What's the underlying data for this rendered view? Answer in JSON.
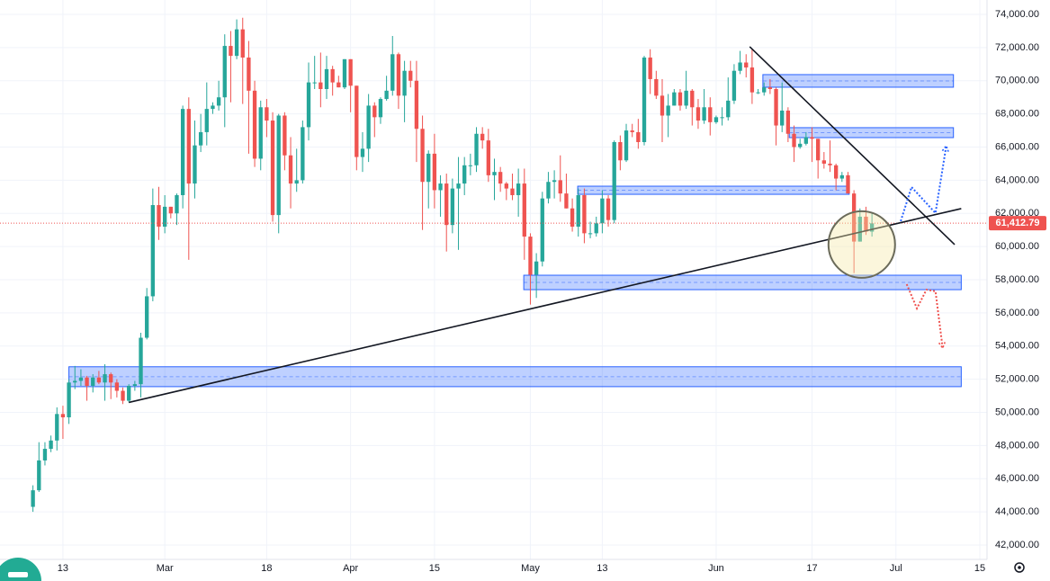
{
  "chart_data": {
    "type": "candlestick",
    "up_color": "#26a69a",
    "down_color": "#ef5350",
    "xlim": [
      33.5,
      198.2
    ],
    "ylim": [
      41130,
      74870
    ],
    "grid": true,
    "xticks": [
      {
        "value": 44,
        "label": "13"
      },
      {
        "value": 61,
        "label": "Mar"
      },
      {
        "value": 78,
        "label": "18"
      },
      {
        "value": 92,
        "label": "Apr"
      },
      {
        "value": 106,
        "label": "15"
      },
      {
        "value": 122,
        "label": "May"
      },
      {
        "value": 134,
        "label": "13"
      },
      {
        "value": 153,
        "label": "Jun"
      },
      {
        "value": 169,
        "label": "17"
      },
      {
        "value": 183,
        "label": "Jul"
      },
      {
        "value": 197,
        "label": "15"
      }
    ],
    "yticks": [
      {
        "value": 42000,
        "label": "42,000.00"
      },
      {
        "value": 44000,
        "label": "44,000.00"
      },
      {
        "value": 46000,
        "label": "46,000.00"
      },
      {
        "value": 48000,
        "label": "48,000.00"
      },
      {
        "value": 50000,
        "label": "50,000.00"
      },
      {
        "value": 52000,
        "label": "52,000.00"
      },
      {
        "value": 54000,
        "label": "54,000.00"
      },
      {
        "value": 56000,
        "label": "56,000.00"
      },
      {
        "value": 58000,
        "label": "58,000.00"
      },
      {
        "value": 60000,
        "label": "60,000.00"
      },
      {
        "value": 62000,
        "label": "62,000.00"
      },
      {
        "value": 64000,
        "label": "64,000.00"
      },
      {
        "value": 66000,
        "label": "66,000.00"
      },
      {
        "value": 68000,
        "label": "68,000.00"
      },
      {
        "value": 70000,
        "label": "70,000.00"
      },
      {
        "value": 72000,
        "label": "72,000.00"
      },
      {
        "value": 74000,
        "label": "74,000.00"
      }
    ],
    "x": [
      39,
      40,
      41,
      42,
      43,
      44,
      45,
      46,
      47,
      48,
      49,
      50,
      51,
      52,
      53,
      54,
      55,
      56,
      57,
      58,
      59,
      60,
      61,
      62,
      63,
      64,
      65,
      66,
      67,
      68,
      69,
      70,
      71,
      72,
      73,
      74,
      75,
      76,
      77,
      78,
      79,
      80,
      81,
      82,
      83,
      84,
      85,
      86,
      87,
      88,
      89,
      90,
      91,
      92,
      93,
      94,
      95,
      96,
      97,
      98,
      99,
      100,
      101,
      102,
      103,
      104,
      105,
      106,
      107,
      108,
      109,
      110,
      111,
      112,
      113,
      114,
      115,
      116,
      117,
      118,
      119,
      120,
      121,
      122,
      123,
      124,
      125,
      126,
      127,
      128,
      129,
      130,
      131,
      132,
      133,
      134,
      135,
      136,
      137,
      138,
      139,
      140,
      141,
      142,
      143,
      144,
      145,
      146,
      147,
      148,
      149,
      150,
      151,
      152,
      153,
      154,
      155,
      156,
      157,
      158,
      159,
      160,
      161,
      162,
      163,
      164,
      165,
      166,
      167,
      168,
      169,
      170,
      171,
      172,
      173,
      174,
      175,
      176,
      177,
      178,
      179
    ],
    "open": [
      44300,
      45300,
      47100,
      47800,
      48300,
      49900,
      49700,
      51800,
      51900,
      52100,
      51600,
      52100,
      51800,
      52300,
      51800,
      51300,
      50700,
      51600,
      51700,
      54500,
      57000,
      62500,
      61200,
      62400,
      62000,
      63100,
      68300,
      63800,
      66100,
      66900,
      68300,
      68500,
      69000,
      72100,
      71500,
      73100,
      71400,
      69400,
      65300,
      68400,
      67600,
      61900,
      67900,
      65500,
      63800,
      64000,
      67200,
      69900,
      69900,
      69500,
      70700,
      69900,
      69600,
      71300,
      69700,
      65400,
      65900,
      68500,
      67800,
      68900,
      69400,
      71600,
      69100,
      70600,
      70000,
      67100,
      63900,
      65600,
      63400,
      63800,
      61300,
      63500,
      63800,
      64900,
      64900,
      66800,
      66400,
      64300,
      64500,
      63800,
      63500,
      63100,
      63800,
      60600,
      58300,
      59100,
      62900,
      63900,
      64000,
      63200,
      62300,
      61200,
      63100,
      60800,
      60800,
      61400,
      62900,
      61600,
      66300,
      65200,
      67000,
      66900,
      66300,
      71400,
      70100,
      69100,
      67900,
      68500,
      69300,
      68500,
      69400,
      68400,
      67600,
      68400,
      67500,
      67800,
      67800,
      68800,
      70600,
      71100,
      70800,
      69300,
      69300,
      69600,
      69500,
      67300,
      68200,
      66800,
      66000,
      66200,
      66600,
      66500,
      65200,
      65000,
      64900,
      64100,
      64300,
      63200,
      60300,
      61800,
      60900
    ],
    "high": [
      45600,
      48200,
      48200,
      48600,
      50300,
      50400,
      52000,
      52800,
      52600,
      52200,
      52300,
      52500,
      52900,
      52400,
      52000,
      51500,
      51700,
      51900,
      54800,
      57500,
      63500,
      63600,
      63100,
      62400,
      63200,
      68500,
      69000,
      67600,
      68000,
      69900,
      68700,
      70000,
      72800,
      73000,
      73700,
      73800,
      72400,
      70000,
      68800,
      68900,
      68100,
      68000,
      68100,
      66600,
      65900,
      67600,
      71100,
      71500,
      71700,
      71500,
      70900,
      70300,
      71300,
      71300,
      69700,
      66900,
      69200,
      68700,
      69000,
      70300,
      72700,
      71700,
      71200,
      71200,
      71200,
      67900,
      65800,
      66800,
      64300,
      64400,
      64100,
      65400,
      65400,
      65600,
      67200,
      67200,
      67100,
      65300,
      64800,
      63900,
      64400,
      64700,
      64700,
      60800,
      59600,
      63300,
      64500,
      64600,
      65500,
      64400,
      62900,
      63500,
      63500,
      61500,
      61800,
      63400,
      63100,
      66400,
      66700,
      67400,
      67400,
      67700,
      71500,
      71900,
      70600,
      70100,
      69200,
      69500,
      69500,
      70600,
      69500,
      68900,
      69500,
      69000,
      67900,
      68400,
      70200,
      71000,
      71800,
      71600,
      71900,
      69500,
      69900,
      70100,
      69600,
      69900,
      68400,
      67300,
      66500,
      66900,
      67200,
      66500,
      65700,
      66400,
      65000,
      64500,
      64500,
      63400,
      62300,
      62400,
      62000
    ],
    "low": [
      44000,
      45200,
      46800,
      47600,
      47700,
      48400,
      49300,
      51400,
      51600,
      50700,
      51200,
      51700,
      50700,
      50800,
      50900,
      50500,
      50600,
      51300,
      50900,
      54400,
      56700,
      60400,
      60800,
      61700,
      61300,
      62300,
      59200,
      62900,
      65700,
      66100,
      68000,
      68200,
      67200,
      68700,
      71300,
      68600,
      65600,
      64800,
      64600,
      66600,
      61500,
      60800,
      64600,
      62300,
      63300,
      63800,
      66400,
      69500,
      68400,
      68900,
      69100,
      69600,
      69500,
      68100,
      64600,
      64500,
      65100,
      66600,
      67400,
      68800,
      69100,
      68300,
      67500,
      69600,
      65100,
      61000,
      62300,
      62300,
      61800,
      59700,
      60800,
      59800,
      63100,
      64300,
      64500,
      65900,
      63900,
      62800,
      63300,
      62800,
      62800,
      61800,
      59200,
      56500,
      56900,
      58800,
      62600,
      62900,
      62700,
      62300,
      60900,
      60600,
      60200,
      60500,
      60600,
      60800,
      61200,
      61400,
      64600,
      65100,
      66600,
      65900,
      66100,
      69200,
      68900,
      66300,
      66600,
      68500,
      68200,
      68300,
      67300,
      67100,
      67400,
      66700,
      67400,
      67300,
      67600,
      68600,
      70400,
      70200,
      68600,
      69200,
      69100,
      69200,
      66100,
      66900,
      66300,
      65100,
      65900,
      66100,
      65100,
      64100,
      64700,
      64500,
      63400,
      63900,
      63200,
      58400,
      60300,
      60700,
      60600
    ],
    "close": [
      45300,
      47100,
      47800,
      48300,
      49900,
      49700,
      51800,
      51900,
      52100,
      51600,
      52100,
      51800,
      52300,
      51800,
      51300,
      50700,
      51600,
      51700,
      54500,
      57000,
      62500,
      61200,
      62400,
      62000,
      63100,
      68300,
      63800,
      66100,
      66900,
      68300,
      68500,
      69000,
      72100,
      71500,
      73100,
      71400,
      69400,
      65300,
      68400,
      67600,
      61900,
      67900,
      65500,
      63800,
      64000,
      67200,
      69900,
      69900,
      69500,
      70700,
      69900,
      69600,
      71300,
      69700,
      65400,
      65900,
      68500,
      67800,
      68900,
      69400,
      71600,
      69100,
      70600,
      70000,
      67100,
      63900,
      65600,
      63400,
      63800,
      61300,
      63500,
      63800,
      64900,
      64900,
      66800,
      66400,
      64300,
      64500,
      63800,
      63500,
      63100,
      63800,
      60600,
      58300,
      59100,
      62900,
      63900,
      64000,
      63200,
      62300,
      61200,
      63100,
      60800,
      60800,
      61400,
      62900,
      61600,
      66300,
      65200,
      67000,
      66900,
      66300,
      71400,
      70100,
      69100,
      67900,
      68500,
      69300,
      68500,
      69400,
      68400,
      67600,
      68400,
      67500,
      67800,
      67800,
      68800,
      70600,
      71100,
      70800,
      69300,
      69300,
      69600,
      69500,
      67300,
      68200,
      66800,
      66000,
      66200,
      66600,
      66500,
      65200,
      65000,
      64900,
      64100,
      64300,
      63200,
      60300,
      61800,
      60900,
      61400
    ],
    "current_price": {
      "value": 61412.79,
      "label": "61,412.79",
      "color": "#ef5350"
    },
    "zones": [
      {
        "x0": 45,
        "x1": 193.9,
        "y0": 52750,
        "y1": 51550
      },
      {
        "x0": 120.9,
        "x1": 193.9,
        "y0": 58270,
        "y1": 57400
      },
      {
        "x0": 129.9,
        "x1": 175.2,
        "y0": 63640,
        "y1": 63150
      },
      {
        "x0": 165.2,
        "x1": 192.6,
        "y0": 67170,
        "y1": 66570
      },
      {
        "x0": 160.8,
        "x1": 192.6,
        "y0": 70370,
        "y1": 69610
      }
    ],
    "zone_color": "#2962ff",
    "trendlines": [
      {
        "x0": 55,
        "y0": 50600,
        "x1": 193.9,
        "y1": 62290
      },
      {
        "x0": 158.6,
        "y0": 72050,
        "x1": 192.8,
        "y1": 60120
      }
    ],
    "highlight": {
      "x": 177.3,
      "y": 60120
    },
    "projections": [
      {
        "color": "#2962ff",
        "x": [
          183.8,
          185.6,
          189.6,
          191.4
        ],
        "y": [
          61530,
          63590,
          62020,
          66080
        ]
      },
      {
        "color": "#ef5350",
        "x": [
          184.8,
          186.5,
          188.1,
          189.6,
          190.8
        ],
        "y": [
          57730,
          56270,
          57400,
          57300,
          53880
        ]
      }
    ]
  }
}
